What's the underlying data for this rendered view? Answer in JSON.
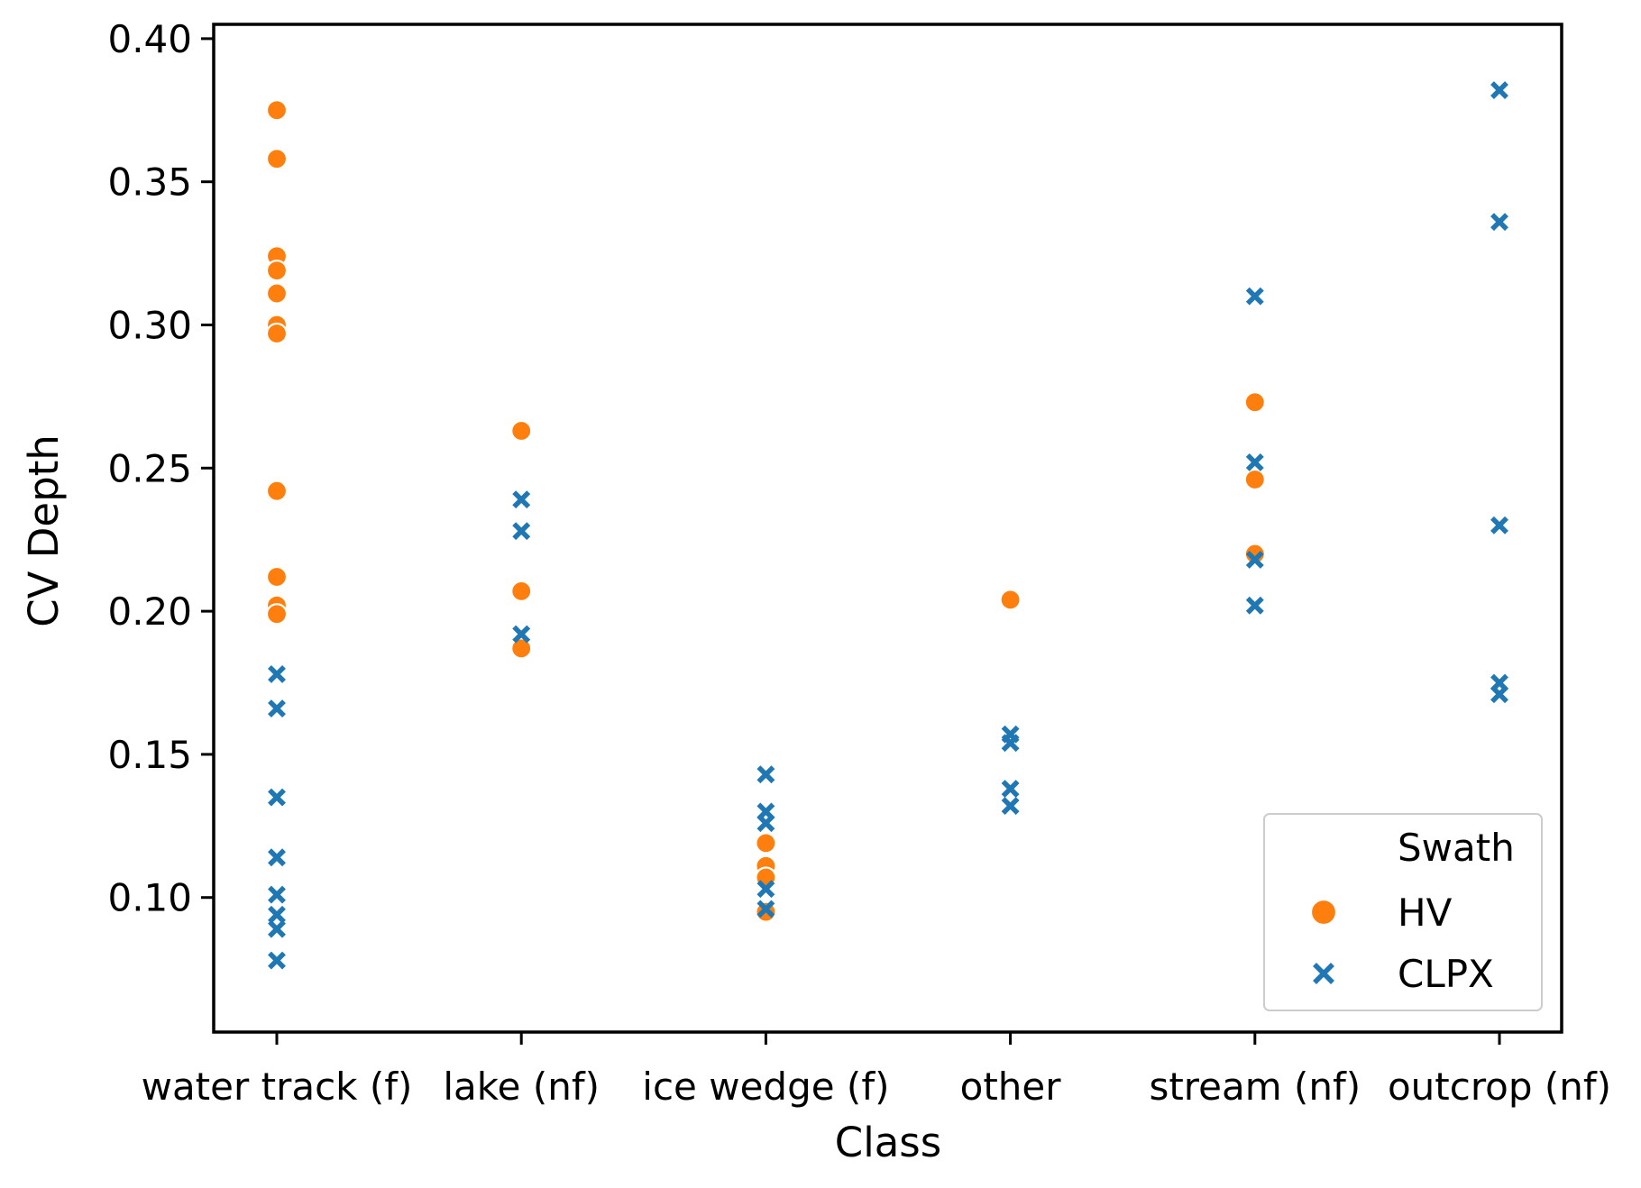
{
  "chart_data": {
    "type": "scatter",
    "xlabel": "Class",
    "ylabel": "CV Depth",
    "categories": [
      "water track (f)",
      "lake (nf)",
      "ice wedge (f)",
      "other",
      "stream (nf)",
      "outcrop (nf)"
    ],
    "ylim": [
      0.053,
      0.405
    ],
    "yticks": [
      0.1,
      0.15,
      0.2,
      0.25,
      0.3,
      0.35,
      0.4
    ],
    "ytick_labels": [
      "0.10",
      "0.15",
      "0.20",
      "0.25",
      "0.30",
      "0.35",
      "0.40"
    ],
    "grid": false,
    "legend": {
      "title": "Swath",
      "position": "bottom-right"
    },
    "series": [
      {
        "name": "HV",
        "marker": "circle",
        "color": "#ff7f0e",
        "points": [
          {
            "category": "water track (f)",
            "y": 0.375
          },
          {
            "category": "water track (f)",
            "y": 0.358
          },
          {
            "category": "water track (f)",
            "y": 0.324
          },
          {
            "category": "water track (f)",
            "y": 0.319
          },
          {
            "category": "water track (f)",
            "y": 0.311
          },
          {
            "category": "water track (f)",
            "y": 0.3
          },
          {
            "category": "water track (f)",
            "y": 0.297
          },
          {
            "category": "water track (f)",
            "y": 0.242
          },
          {
            "category": "water track (f)",
            "y": 0.212
          },
          {
            "category": "water track (f)",
            "y": 0.202
          },
          {
            "category": "water track (f)",
            "y": 0.199
          },
          {
            "category": "lake (nf)",
            "y": 0.263
          },
          {
            "category": "lake (nf)",
            "y": 0.207
          },
          {
            "category": "lake (nf)",
            "y": 0.187
          },
          {
            "category": "ice wedge (f)",
            "y": 0.119
          },
          {
            "category": "ice wedge (f)",
            "y": 0.111
          },
          {
            "category": "ice wedge (f)",
            "y": 0.107
          },
          {
            "category": "ice wedge (f)",
            "y": 0.095
          },
          {
            "category": "other",
            "y": 0.204
          },
          {
            "category": "stream (nf)",
            "y": 0.273
          },
          {
            "category": "stream (nf)",
            "y": 0.246
          },
          {
            "category": "stream (nf)",
            "y": 0.22
          }
        ]
      },
      {
        "name": "CLPX",
        "marker": "x",
        "color": "#1f77b4",
        "points": [
          {
            "category": "water track (f)",
            "y": 0.178
          },
          {
            "category": "water track (f)",
            "y": 0.166
          },
          {
            "category": "water track (f)",
            "y": 0.135
          },
          {
            "category": "water track (f)",
            "y": 0.114
          },
          {
            "category": "water track (f)",
            "y": 0.101
          },
          {
            "category": "water track (f)",
            "y": 0.094
          },
          {
            "category": "water track (f)",
            "y": 0.089
          },
          {
            "category": "water track (f)",
            "y": 0.078
          },
          {
            "category": "lake (nf)",
            "y": 0.239
          },
          {
            "category": "lake (nf)",
            "y": 0.228
          },
          {
            "category": "lake (nf)",
            "y": 0.192
          },
          {
            "category": "ice wedge (f)",
            "y": 0.143
          },
          {
            "category": "ice wedge (f)",
            "y": 0.13
          },
          {
            "category": "ice wedge (f)",
            "y": 0.126
          },
          {
            "category": "ice wedge (f)",
            "y": 0.103
          },
          {
            "category": "ice wedge (f)",
            "y": 0.096
          },
          {
            "category": "other",
            "y": 0.157
          },
          {
            "category": "other",
            "y": 0.154
          },
          {
            "category": "other",
            "y": 0.138
          },
          {
            "category": "other",
            "y": 0.132
          },
          {
            "category": "stream (nf)",
            "y": 0.31
          },
          {
            "category": "stream (nf)",
            "y": 0.252
          },
          {
            "category": "stream (nf)",
            "y": 0.218
          },
          {
            "category": "stream (nf)",
            "y": 0.202
          },
          {
            "category": "outcrop (nf)",
            "y": 0.382
          },
          {
            "category": "outcrop (nf)",
            "y": 0.336
          },
          {
            "category": "outcrop (nf)",
            "y": 0.23
          },
          {
            "category": "outcrop (nf)",
            "y": 0.175
          },
          {
            "category": "outcrop (nf)",
            "y": 0.171
          }
        ]
      }
    ]
  }
}
